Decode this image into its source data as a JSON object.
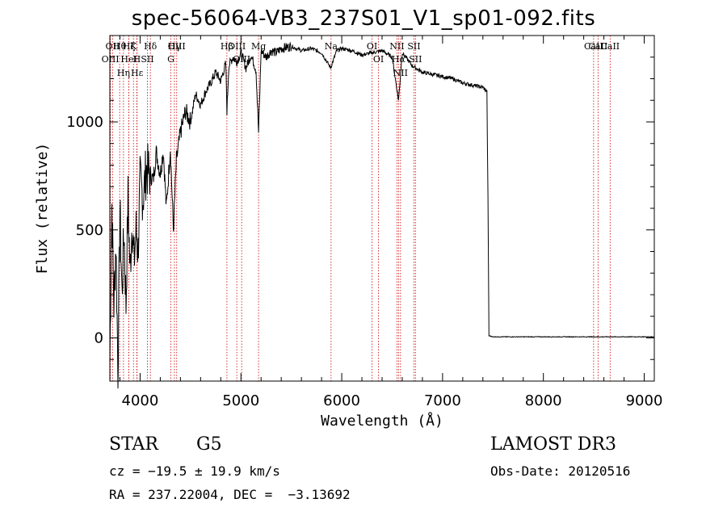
{
  "chart_data": {
    "type": "line",
    "title": "spec-56064-VB3_237S01_V1_sp01-092.fits",
    "xlabel": "Wavelength (Å)",
    "ylabel": "Flux (relative)",
    "xlim": [
      3700,
      9100
    ],
    "ylim": [
      -200,
      1400
    ],
    "xticks": [
      4000,
      5000,
      6000,
      7000,
      8000,
      9000
    ],
    "yticks": [
      0,
      500,
      1000
    ],
    "series": [
      {
        "name": "flux",
        "x": [
          3700,
          3720,
          3740,
          3760,
          3780,
          3800,
          3820,
          3840,
          3860,
          3880,
          3900,
          3920,
          3940,
          3960,
          3980,
          4000,
          4030,
          4060,
          4100,
          4130,
          4160,
          4200,
          4230,
          4260,
          4300,
          4330,
          4360,
          4400,
          4450,
          4500,
          4550,
          4600,
          4650,
          4700,
          4750,
          4800,
          4850,
          4861,
          4880,
          4920,
          4960,
          5000,
          5050,
          5100,
          5150,
          5175,
          5200,
          5250,
          5300,
          5350,
          5400,
          5500,
          5600,
          5700,
          5800,
          5890,
          5950,
          6000,
          6100,
          6200,
          6300,
          6400,
          6500,
          6563,
          6600,
          6700,
          6800,
          6900,
          7000,
          7100,
          7200,
          7300,
          7400,
          7440,
          7450,
          7460,
          7500,
          8000,
          8500,
          9100
        ],
        "y": [
          -100,
          620,
          150,
          450,
          -150,
          600,
          200,
          500,
          150,
          650,
          300,
          550,
          350,
          500,
          400,
          720,
          650,
          780,
          760,
          730,
          860,
          760,
          870,
          600,
          880,
          500,
          820,
          950,
          1050,
          1000,
          1130,
          1080,
          1140,
          1180,
          1230,
          1190,
          1270,
          1050,
          1260,
          1300,
          1280,
          1320,
          1250,
          1310,
          1240,
          950,
          1330,
          1300,
          1330,
          1320,
          1340,
          1350,
          1330,
          1340,
          1320,
          1250,
          1330,
          1340,
          1330,
          1310,
          1320,
          1330,
          1300,
          1100,
          1320,
          1260,
          1230,
          1220,
          1210,
          1200,
          1180,
          1170,
          1160,
          1140,
          650,
          10,
          5,
          5,
          5,
          5
        ]
      }
    ],
    "lines": [
      {
        "name": "Hθ",
        "wl": 3797
      },
      {
        "name": "OII",
        "wl": 3727
      },
      {
        "name": "OIII",
        "wl": 3705
      },
      {
        "name": "K",
        "wl": 3934
      },
      {
        "name": "H",
        "wl": 3968
      },
      {
        "name": "HeI",
        "wl": 3889
      },
      {
        "name": "Hε",
        "wl": 3970
      },
      {
        "name": "Hη",
        "wl": 3835
      },
      {
        "name": "Hζ",
        "wl": 3889
      },
      {
        "name": "Hδ",
        "wl": 4102
      },
      {
        "name": "SII",
        "wl": 4072
      },
      {
        "name": "OIII",
        "wl": 4363
      },
      {
        "name": "Hγ",
        "wl": 4340
      },
      {
        "name": "G",
        "wl": 4305
      },
      {
        "name": "Hβ",
        "wl": 4861
      },
      {
        "name": "OIII",
        "wl": 4959
      },
      {
        "name": "OIII",
        "wl": 5007
      },
      {
        "name": "Mg",
        "wl": 5175
      },
      {
        "name": "Na",
        "wl": 5894
      },
      {
        "name": "OI",
        "wl": 6300
      },
      {
        "name": "OI",
        "wl": 6364
      },
      {
        "name": "NII",
        "wl": 6548
      },
      {
        "name": "Hα",
        "wl": 6563
      },
      {
        "name": "NII",
        "wl": 6583
      },
      {
        "name": "SII",
        "wl": 6716
      },
      {
        "name": "SII",
        "wl": 6731
      },
      {
        "name": "CaII",
        "wl": 8498
      },
      {
        "name": "CaII",
        "wl": 8542
      },
      {
        "name": "CaII",
        "wl": 8662
      }
    ]
  },
  "info": {
    "object_class": "STAR",
    "subclass": "G5",
    "redshift": "cz = −19.5 ± 19.9 km/s",
    "coords": "RA = 237.22004, DEC =  −3.13692",
    "survey": "LAMOST DR3",
    "obs_date": "Obs-Date: 20120516"
  },
  "colors": {
    "axis": "#000000",
    "line_marker": "#cc0000",
    "spectrum": "#000000"
  }
}
